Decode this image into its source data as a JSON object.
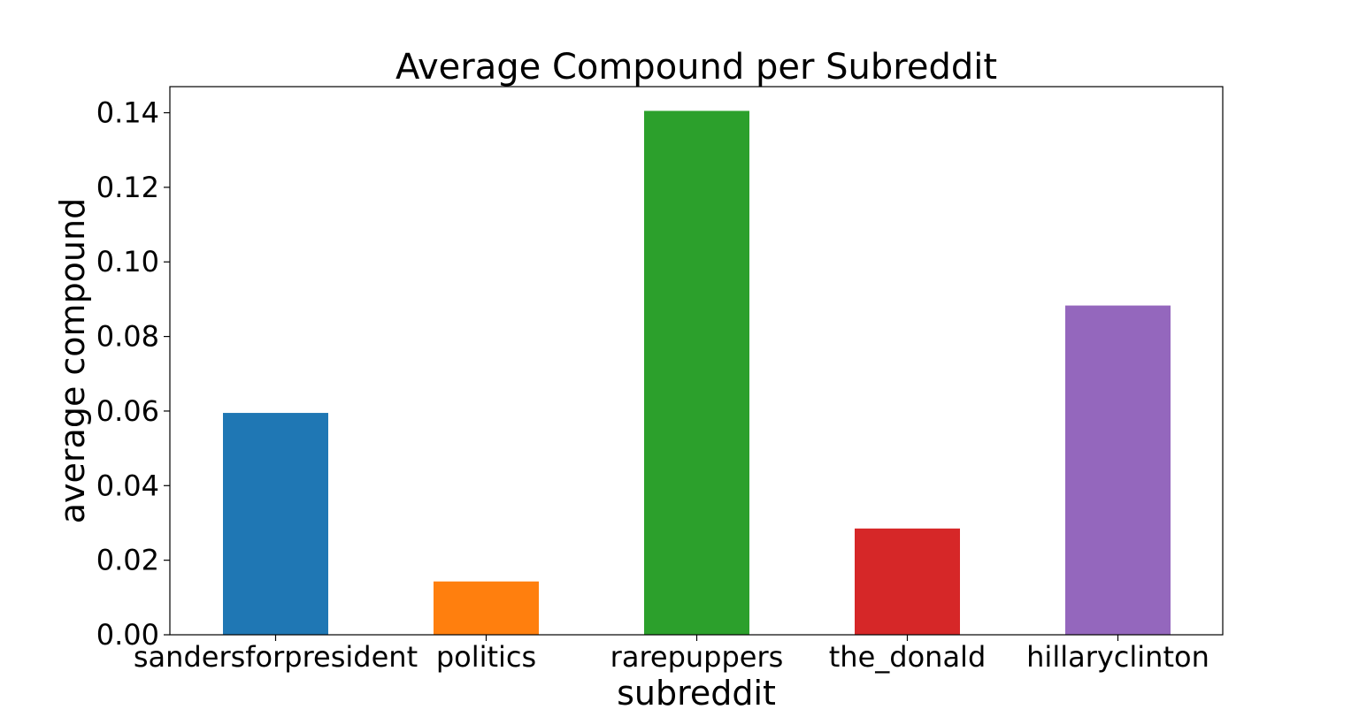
{
  "chart_data": {
    "type": "bar",
    "title": "Average Compound per Subreddit",
    "xlabel": "subreddit",
    "ylabel": "average compound",
    "categories": [
      "sandersforpresident",
      "politics",
      "rarepuppers",
      "the_donald",
      "hillaryclinton"
    ],
    "values": [
      0.0595,
      0.0143,
      0.1405,
      0.0285,
      0.0883
    ],
    "colors": [
      "#1f77b4",
      "#ff7f0e",
      "#2ca02c",
      "#d62728",
      "#9467bd"
    ],
    "ylim": [
      0,
      0.147
    ],
    "yticks": [
      "0.00",
      "0.02",
      "0.04",
      "0.06",
      "0.08",
      "0.10",
      "0.12",
      "0.14"
    ],
    "grid": false,
    "legend": "none"
  }
}
